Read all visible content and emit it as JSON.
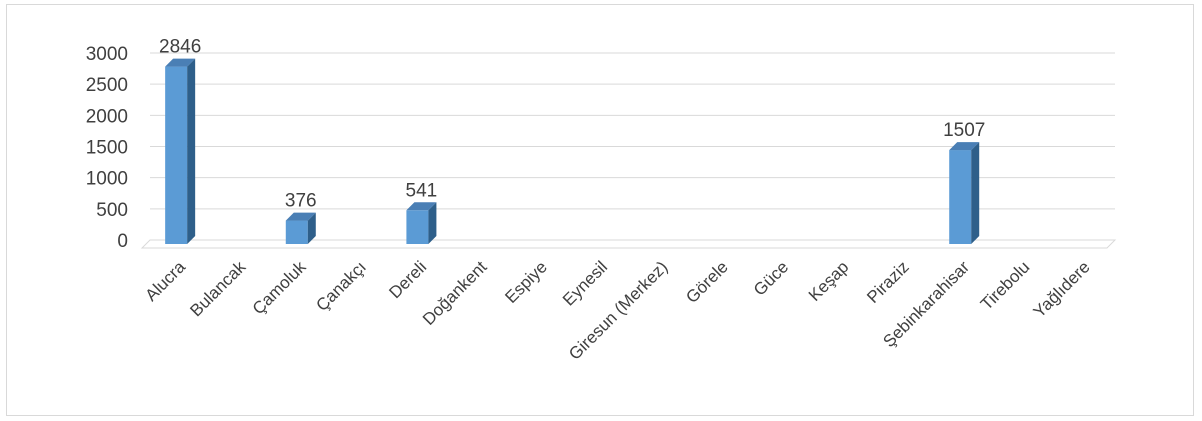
{
  "chart_data": {
    "type": "bar",
    "categories": [
      "Alucra",
      "Bulancak",
      "Çamoluk",
      "Çanakçı",
      "Dereli",
      "Doğankent",
      "Espiye",
      "Eynesil",
      "Giresun (Merkez)",
      "Görele",
      "Güce",
      "Keşap",
      "Piraziz",
      "Şebinkarahisar",
      "Tirebolu",
      "Yağlıdere"
    ],
    "values": [
      2846,
      0,
      376,
      0,
      541,
      0,
      0,
      0,
      0,
      0,
      0,
      0,
      0,
      1507,
      0,
      0
    ],
    "data_labels": [
      "2846",
      "",
      "376",
      "",
      "541",
      "",
      "",
      "",
      "",
      "",
      "",
      "",
      "",
      "1507",
      "",
      ""
    ],
    "yticks": [
      "0",
      "500",
      "1000",
      "1500",
      "2000",
      "2500",
      "3000"
    ],
    "ylim": [
      0,
      3000
    ],
    "grid": true,
    "legend": "none",
    "bar_color": "#5b9bd5",
    "bar_side_color": "#2e5f8a",
    "bar_top_color": "#4a7fb5",
    "grid_color": "#d9d9d9",
    "text_color": "#404040"
  }
}
